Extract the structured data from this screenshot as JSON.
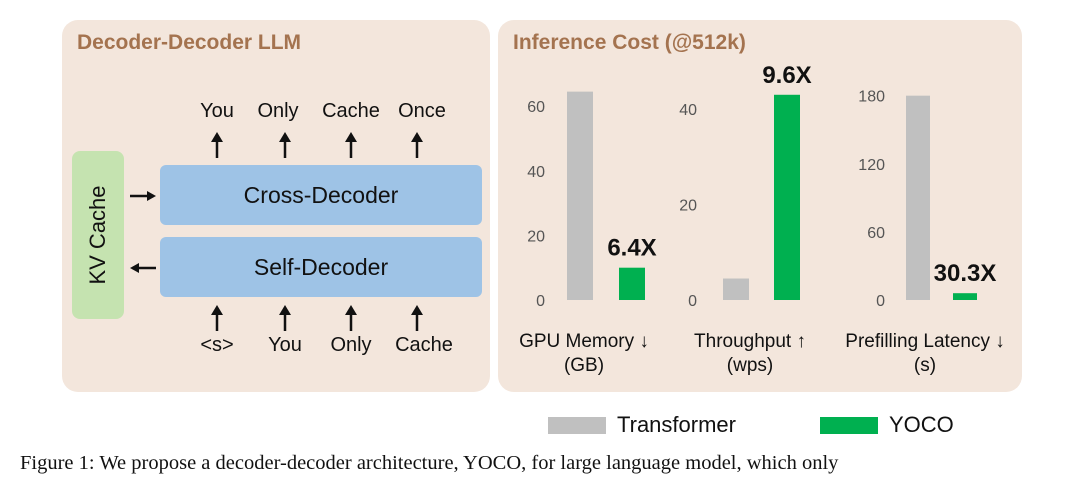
{
  "left_panel": {
    "title": "Decoder-Decoder LLM",
    "kv_cache": "KV Cache",
    "cross_decoder": "Cross-Decoder",
    "self_decoder": "Self-Decoder",
    "output_tokens": [
      "You",
      "Only",
      "Cache",
      "Once"
    ],
    "input_tokens": [
      "<s>",
      "You",
      "Only",
      "Cache"
    ]
  },
  "right_panel": {
    "title": "Inference Cost (@512k)"
  },
  "colors": {
    "transformer": "#c0c0c0",
    "yoco": "#00b050",
    "panel_bg": "#f3e6dc",
    "title": "#a4734f",
    "decoder_block": "#9ec3e6",
    "kv_block": "#c5e3b0"
  },
  "legend": [
    "Transformer",
    "YOCO"
  ],
  "caption": "Figure 1: We propose a decoder-decoder architecture, YOCO, for large language model, which only",
  "chart_data": [
    {
      "type": "bar",
      "title": "",
      "xlabel_lines": [
        "GPU Memory ↓",
        "(GB)"
      ],
      "ylabel": "",
      "ylim": [
        0,
        65
      ],
      "yticks": [
        0,
        20,
        40,
        60
      ],
      "series": [
        {
          "name": "Transformer",
          "values": [
            64.5
          ]
        },
        {
          "name": "YOCO",
          "values": [
            10
          ]
        }
      ],
      "annotation": "6.4X"
    },
    {
      "type": "bar",
      "title": "",
      "xlabel_lines": [
        "Throughput ↑",
        "(wps)"
      ],
      "ylabel": "",
      "ylim": [
        0,
        44
      ],
      "yticks": [
        0,
        20,
        40
      ],
      "series": [
        {
          "name": "Transformer",
          "values": [
            4.5
          ]
        },
        {
          "name": "YOCO",
          "values": [
            43
          ]
        }
      ],
      "annotation": "9.6X"
    },
    {
      "type": "bar",
      "title": "",
      "xlabel_lines": [
        "Prefilling Latency ↓",
        "(s)"
      ],
      "ylabel": "",
      "ylim": [
        0,
        185
      ],
      "yticks": [
        0,
        60,
        120,
        180
      ],
      "series": [
        {
          "name": "Transformer",
          "values": [
            180
          ]
        },
        {
          "name": "YOCO",
          "values": [
            6
          ]
        }
      ],
      "annotation": "30.3X"
    }
  ]
}
